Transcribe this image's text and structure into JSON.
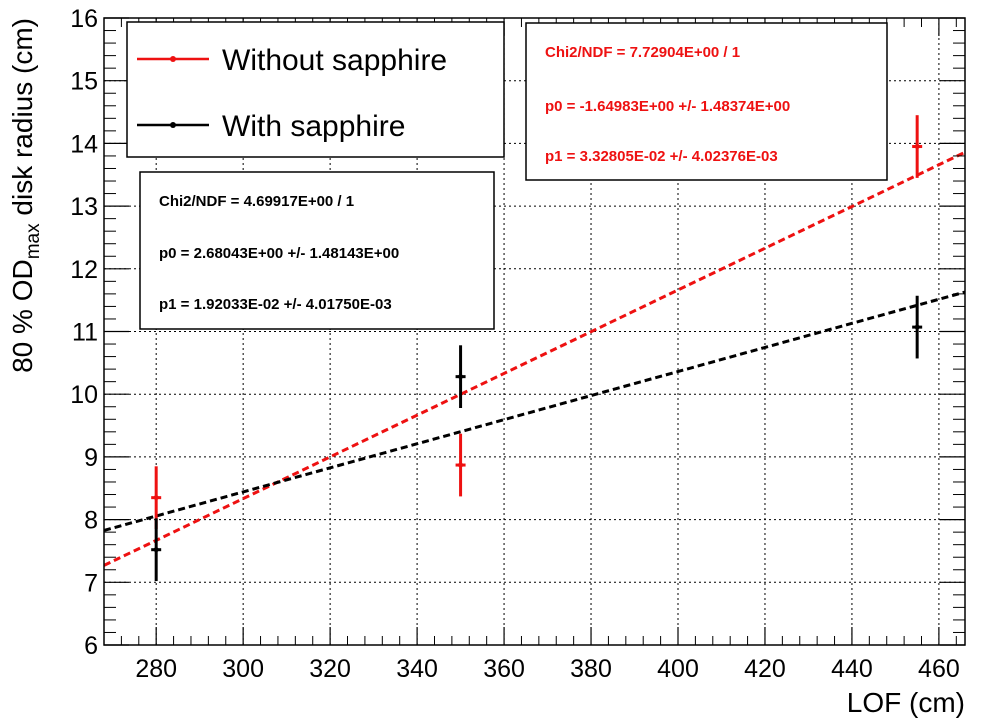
{
  "chart_data": {
    "type": "scatter",
    "xlabel": "LOF (cm)",
    "ylabel": {
      "prefix": "80 % OD",
      "subscript": "max",
      "suffix": " disk radius (cm)"
    },
    "xlim": [
      268,
      466
    ],
    "ylim": [
      6,
      16
    ],
    "x_ticks": [
      280,
      300,
      320,
      340,
      360,
      380,
      400,
      420,
      440,
      460
    ],
    "y_ticks": [
      6,
      7,
      8,
      9,
      10,
      11,
      12,
      13,
      14,
      15,
      16
    ],
    "grid": true,
    "legend_placement": "top-left",
    "series": [
      {
        "name": "Without sapphire",
        "color": "#ee1111",
        "points": [
          {
            "x": 280,
            "y": 8.35,
            "err": 0.5
          },
          {
            "x": 350,
            "y": 8.87,
            "err": 0.5
          },
          {
            "x": 455,
            "y": 13.95,
            "err": 0.5
          }
        ],
        "fit": {
          "p0": -1.64983,
          "p1": 0.0332805
        }
      },
      {
        "name": "With sapphire",
        "color": "#000000",
        "points": [
          {
            "x": 280,
            "y": 7.52,
            "err": 0.5
          },
          {
            "x": 350,
            "y": 10.28,
            "err": 0.5
          },
          {
            "x": 455,
            "y": 11.07,
            "err": 0.5
          }
        ],
        "fit": {
          "p0": 2.68043,
          "p1": 0.0192033
        }
      }
    ],
    "stat_boxes": [
      {
        "color": "#ee1111",
        "lines": [
          "Chi2/NDF = 7.72904E+00 / 1",
          "p0 = -1.64983E+00 +/- 1.48374E+00",
          "p1 = 3.32805E-02 +/- 4.02376E-03"
        ]
      },
      {
        "color": "#000000",
        "lines": [
          "Chi2/NDF = 4.69917E+00 / 1",
          "p0 = 2.68043E+00 +/- 1.48143E+00",
          "p1 = 1.92033E-02 +/- 4.01750E-03"
        ]
      }
    ]
  }
}
